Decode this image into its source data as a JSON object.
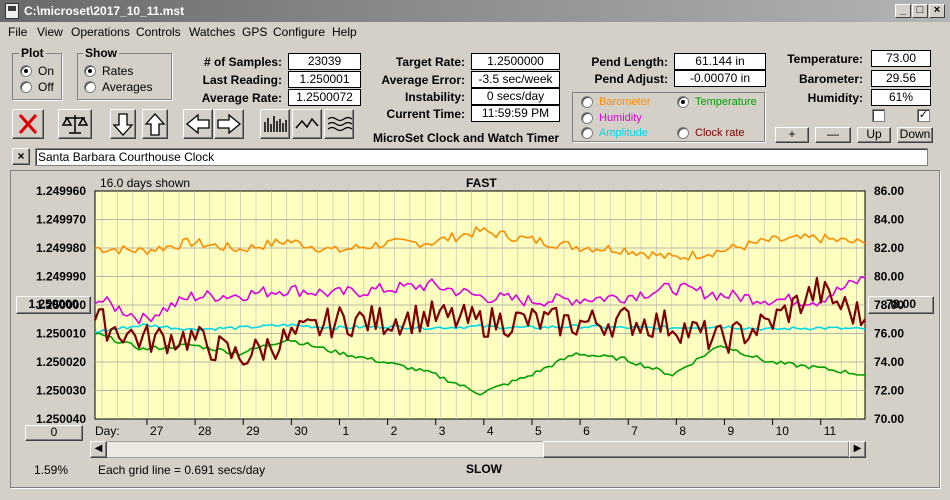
{
  "window": {
    "title": "C:\\microset\\2017_10_11.mst"
  },
  "menu": [
    "File",
    "View",
    "Operations",
    "Controls",
    "Watches",
    "GPS",
    "Configure",
    "Help"
  ],
  "plot_group": {
    "title": "Plot",
    "on": "On",
    "off": "Off",
    "selected": "On"
  },
  "show_group": {
    "title": "Show",
    "rates": "Rates",
    "averages": "Averages",
    "selected": "Rates"
  },
  "stats": {
    "samples_label": "# of Samples:",
    "samples": "23039",
    "last_label": "Last Reading:",
    "last": "1.250001",
    "avg_label": "Average Rate:",
    "avg": "1.2500072",
    "target_label": "Target Rate:",
    "target": "1.2500000",
    "err_label": "Average Error:",
    "err": "-3.5 sec/week",
    "inst_label": "Instability:",
    "inst": "0 secs/day",
    "time_label": "Current Time:",
    "time": "11:59:59 PM",
    "pend_len_label": "Pend Length:",
    "pend_len": "61.144 in",
    "pend_adj_label": "Pend Adjust:",
    "pend_adj": "-0.00070 in",
    "temp_label": "Temperature:",
    "temp": "73.00",
    "baro_label": "Barometer:",
    "baro": "29.56",
    "hum_label": "Humidity:",
    "hum": "61%"
  },
  "app_caption": "MicroSet Clock and Watch Timer",
  "series_select": {
    "barometer": "Barometer",
    "temperature": "Temperature",
    "humidity": "Humidity",
    "amplitude": "Amplitude",
    "clock_rate": "Clock rate",
    "selected": "Temperature"
  },
  "colors": {
    "barometer": "#ff8c00",
    "temperature": "#00a000",
    "humidity": "#e000e0",
    "amplitude": "#00d8e8",
    "clock_rate": "#800000",
    "plot_bg": "#ffffc0"
  },
  "side_buttons": {
    "plus": "+",
    "minus": "—",
    "up": "Up",
    "down": "Down"
  },
  "description": "Santa Barbara Courthouse Clock",
  "plot": {
    "days_shown": "16.0 days shown",
    "fast": "FAST",
    "slow": "SLOW",
    "grid_note": "Each grid line = 0.691 secs/day",
    "percent": "1.59%",
    "day_label": "Day:",
    "left_center_button": "1.250000",
    "right_center_button": "78.00",
    "left_bottom_button": "0"
  },
  "chart_data": {
    "type": "line",
    "x_unit": "day",
    "x_tick_labels": [
      "27",
      "28",
      "29",
      "30",
      "1",
      "2",
      "3",
      "4",
      "5",
      "6",
      "7",
      "8",
      "9",
      "10",
      "11"
    ],
    "y_left_ticks": [
      "1.249960",
      "1.249970",
      "1.249980",
      "1.249990",
      "1.250000",
      "1.250010",
      "1.250020",
      "1.250030",
      "1.250040"
    ],
    "y_left_range": [
      1.24996,
      1.25004
    ],
    "y_left_inverted": true,
    "y_right_ticks": [
      "86.00",
      "84.00",
      "82.00",
      "80.00",
      "78.00",
      "76.00",
      "74.00",
      "72.00",
      "70.00"
    ],
    "y_right_range": [
      70,
      86
    ],
    "grid": true,
    "series": [
      {
        "key": "barometer",
        "x": [
          0,
          1,
          2,
          3,
          4,
          5,
          6,
          7,
          8,
          9,
          10,
          11,
          12,
          13,
          14,
          15,
          16
        ],
        "y": [
          82.0,
          81.8,
          82.4,
          81.9,
          82.5,
          81.8,
          82.3,
          82.4,
          83.2,
          82.6,
          82.1,
          81.9,
          81.3,
          81.8,
          82.5,
          82.7,
          82.3
        ]
      },
      {
        "key": "humidity",
        "x": [
          0,
          1,
          2,
          3,
          4,
          5,
          6,
          7,
          8,
          9,
          10,
          11,
          12,
          13,
          14,
          15,
          16
        ],
        "y": [
          78.5,
          77.0,
          78.6,
          78.7,
          79.1,
          78.8,
          79.1,
          79.4,
          78.6,
          78.3,
          78.4,
          78.6,
          79.2,
          78.7,
          78.4,
          78.3,
          79.9
        ]
      },
      {
        "key": "amplitude",
        "x": [
          0,
          1,
          2,
          3,
          4,
          5,
          6,
          7,
          8,
          9,
          10,
          11,
          12,
          13,
          14,
          15,
          16
        ],
        "y": [
          76.1,
          76.6,
          76.3,
          76.4,
          76.6,
          76.4,
          76.5,
          76.4,
          76.5,
          76.4,
          76.5,
          76.4,
          76.4,
          76.5,
          76.3,
          76.4,
          76.3
        ]
      },
      {
        "key": "temperature",
        "x": [
          0,
          1,
          2,
          3,
          4,
          5,
          6,
          7,
          8,
          9,
          10,
          11,
          12,
          13,
          14,
          15,
          16
        ],
        "y": [
          76.0,
          74.9,
          75.2,
          74.6,
          75.6,
          74.7,
          74.0,
          73.2,
          71.8,
          73.0,
          74.6,
          74.2,
          73.1,
          75.2,
          74.0,
          73.6,
          73.1
        ]
      },
      {
        "key": "clock_rate",
        "x": [
          0,
          1,
          2,
          3,
          4,
          5,
          6,
          7,
          8,
          9,
          10,
          11,
          12,
          13,
          14,
          15,
          16
        ],
        "y": [
          76.9,
          75.6,
          75.7,
          74.3,
          75.6,
          76.9,
          76.9,
          77.2,
          76.8,
          76.9,
          76.7,
          76.9,
          76.6,
          75.5,
          76.7,
          79.0,
          77.0
        ]
      }
    ]
  }
}
